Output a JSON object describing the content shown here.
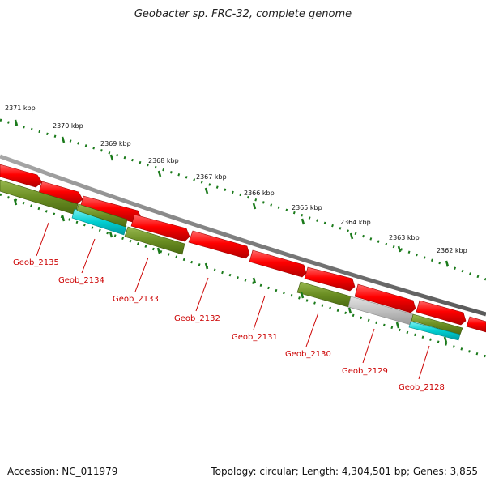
{
  "title": "Geobacter sp. FRC-32, complete genome",
  "footer": {
    "accession": "Accession: NC_011979",
    "summary": "Topology: circular; Length: 4,304,501 bp; Genes: 3,855"
  },
  "ruler_labels": [
    "2371 kbp",
    "2370 kbp",
    "2369 kbp",
    "2368 kbp",
    "2367 kbp",
    "2366 kbp",
    "2365 kbp",
    "2364 kbp",
    "2363 kbp",
    "2362 kbp"
  ],
  "gene_labels": [
    "Geob_2135",
    "Geob_2134",
    "Geob_2133",
    "Geob_2132",
    "Geob_2131",
    "Geob_2130",
    "Geob_2129",
    "Geob_2128"
  ],
  "colors": {
    "backbone": "#808080",
    "cds": "#ff0000",
    "gene_green": "#6b8e23",
    "gene_cyan": "#00ced1",
    "gene_gray": "#c0c0c0",
    "ticks": "#1a7a1a",
    "label_red": "#cc0000"
  }
}
